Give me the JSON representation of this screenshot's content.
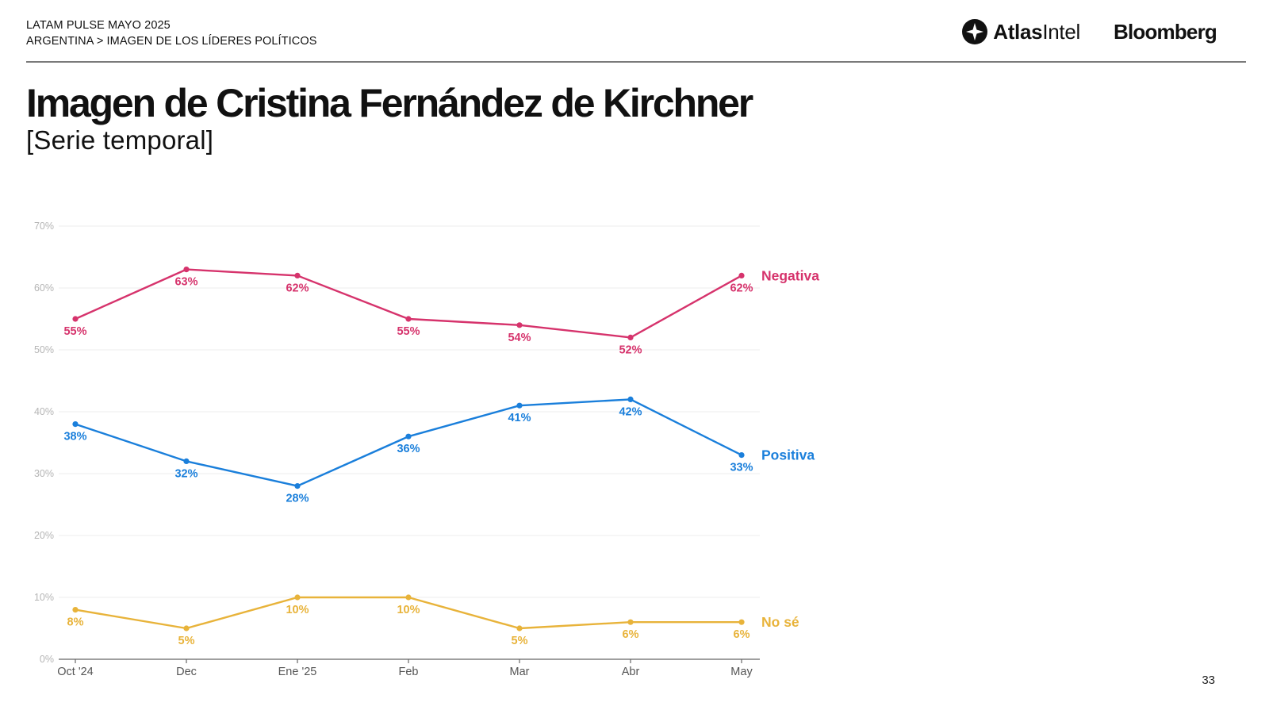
{
  "header": {
    "line1": "LATAM PULSE MAYO 2025",
    "line2": "ARGENTINA > IMAGEN DE LOS LÍDERES POLÍTICOS"
  },
  "logos": {
    "atlas_bold": "Atlas",
    "atlas_regular": "Intel",
    "bloomberg": "Bloomberg",
    "atlas_icon": "atlasintel-logo-icon"
  },
  "title": "Imagen de Cristina Fernández de Kirchner",
  "subtitle": "[Serie temporal]",
  "page_number": "33",
  "chart_data": {
    "type": "line",
    "categories": [
      "Oct '24",
      "Dec",
      "Ene '25",
      "Feb",
      "Mar",
      "Abr",
      "May"
    ],
    "y_ticks": [
      "0%",
      "10%",
      "20%",
      "30%",
      "40%",
      "50%",
      "60%",
      "70%"
    ],
    "ylim": [
      0,
      70
    ],
    "grid": true,
    "legend": "end-of-line labels",
    "series": [
      {
        "name": "Negativa",
        "color": "#d6336c",
        "values": [
          55,
          63,
          62,
          55,
          54,
          52,
          62
        ],
        "labels": [
          "55%",
          "63%",
          "62%",
          "55%",
          "54%",
          "52%",
          "62%"
        ]
      },
      {
        "name": "Positiva",
        "color": "#1a7fdb",
        "values": [
          38,
          32,
          28,
          36,
          41,
          42,
          33
        ],
        "labels": [
          "38%",
          "32%",
          "28%",
          "36%",
          "41%",
          "42%",
          "33%"
        ]
      },
      {
        "name": "No sé",
        "color": "#e8b33a",
        "values": [
          8,
          5,
          10,
          10,
          5,
          6,
          6
        ],
        "labels": [
          "8%",
          "5%",
          "10%",
          "10%",
          "5%",
          "6%",
          "6%"
        ]
      }
    ]
  }
}
